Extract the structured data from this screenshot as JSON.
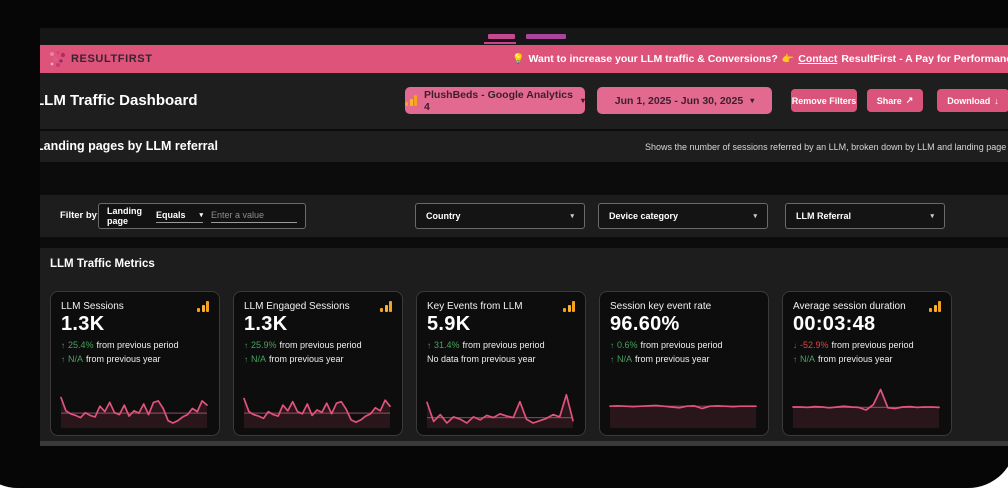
{
  "colors": {
    "accent_pink": "#e0537c",
    "banner_pink": "#dd537a",
    "pill_pink": "#e26a90",
    "button_pink": "#d9537b",
    "green": "#47a35f",
    "red": "#e04444",
    "orange": "#f6a21c"
  },
  "banner": {
    "logo_text": "RESULTFIRST",
    "promo_bulb": "💡",
    "promo_before": "Want to increase your LLM traffic & Conversions?",
    "promo_pointer": "👉",
    "promo_link": "Contact",
    "promo_after": "ResultFirst - A Pay for Performance SEO Agency"
  },
  "header": {
    "title": "LLM Traffic Dashboard",
    "property_selector": "PlushBeds - Google Analytics 4",
    "date_range": "Jun 1, 2025 - Jun 30, 2025",
    "remove_filters": "Remove Filters",
    "share": "Share",
    "share_icon": "↗",
    "download": "Download",
    "download_icon": "↓",
    "caret": "▾"
  },
  "section": {
    "title": "Landing pages by LLM referral",
    "description": "Shows the number of sessions referred by an LLM, broken down by LLM and landing page"
  },
  "filters": {
    "filter_by": "Filter by:",
    "field": "Landing page",
    "operator": "Equals",
    "operator_caret": "▾",
    "placeholder": "Enter a value",
    "dropdowns": [
      {
        "label": "Country",
        "caret": "▾"
      },
      {
        "label": "Device category",
        "caret": "▾"
      },
      {
        "label": "LLM Referral",
        "caret": "▾"
      }
    ]
  },
  "metrics": {
    "title": "LLM Traffic Metrics",
    "cards": [
      {
        "title": "LLM Sessions",
        "value": "1.3K",
        "rows": [
          {
            "arrow": "↑",
            "pct": "25.4%",
            "rest": "from previous period",
            "tone": "up"
          },
          {
            "arrow": "↑",
            "pct": "N/A",
            "rest": "from previous year",
            "tone": "up"
          }
        ]
      },
      {
        "title": "LLM Engaged Sessions",
        "value": "1.3K",
        "rows": [
          {
            "arrow": "↑",
            "pct": "25.9%",
            "rest": "from previous period",
            "tone": "up"
          },
          {
            "arrow": "↑",
            "pct": "N/A",
            "rest": "from previous year",
            "tone": "up"
          }
        ]
      },
      {
        "title": "Key Events from LLM",
        "value": "5.9K",
        "rows": [
          {
            "arrow": "↑",
            "pct": "31.4%",
            "rest": "from previous period",
            "tone": "up"
          },
          {
            "arrow": "",
            "pct": "",
            "rest": "No data from previous year",
            "tone": "neutral"
          }
        ]
      },
      {
        "title": "Session key event rate",
        "value": "96.60%",
        "rows": [
          {
            "arrow": "↑",
            "pct": "0.6%",
            "rest": "from previous period",
            "tone": "up"
          },
          {
            "arrow": "↑",
            "pct": "N/A",
            "rest": "from previous year",
            "tone": "up"
          }
        ]
      },
      {
        "title": "Average session duration",
        "value": "00:03:48",
        "rows": [
          {
            "arrow": "↓",
            "pct": "-52.9%",
            "rest": "from previous period",
            "tone": "down"
          },
          {
            "arrow": "↑",
            "pct": "N/A",
            "rest": "from previous year",
            "tone": "up"
          }
        ]
      }
    ]
  },
  "chart_data": [
    {
      "type": "line",
      "name": "LLM Sessions sparkline",
      "values": [
        75,
        40,
        32,
        28,
        22,
        35,
        28,
        24,
        52,
        38,
        62,
        35,
        30,
        55,
        26,
        40,
        34,
        58,
        30,
        62,
        66,
        46,
        14,
        8,
        14,
        24,
        30,
        46,
        38,
        66,
        55
      ],
      "baseline": 34
    },
    {
      "type": "line",
      "name": "LLM Engaged Sessions sparkline",
      "values": [
        72,
        38,
        30,
        26,
        20,
        38,
        30,
        26,
        55,
        40,
        64,
        38,
        32,
        58,
        28,
        42,
        36,
        60,
        32,
        60,
        64,
        44,
        16,
        10,
        16,
        26,
        32,
        48,
        40,
        68,
        52
      ],
      "baseline": 34
    },
    {
      "type": "line",
      "name": "Key Events from LLM sparkline",
      "values": [
        62,
        12,
        30,
        8,
        24,
        18,
        8,
        24,
        16,
        28,
        22,
        32,
        26,
        22,
        64,
        18,
        8,
        14,
        20,
        30,
        24,
        82,
        14
      ],
      "baseline": 22
    },
    {
      "type": "line",
      "name": "Session key event rate sparkline",
      "values": [
        52,
        53,
        52,
        51,
        52,
        53,
        54,
        52,
        50,
        48,
        52,
        53,
        46,
        52,
        53,
        52,
        51,
        52,
        52,
        52
      ],
      "baseline": 52
    },
    {
      "type": "line",
      "name": "Average session duration sparkline",
      "values": [
        50,
        50,
        49,
        51,
        50,
        48,
        50,
        52,
        50,
        49,
        42,
        56,
        96,
        48,
        46,
        50,
        51,
        49,
        50,
        50,
        49
      ],
      "baseline": 49
    }
  ]
}
